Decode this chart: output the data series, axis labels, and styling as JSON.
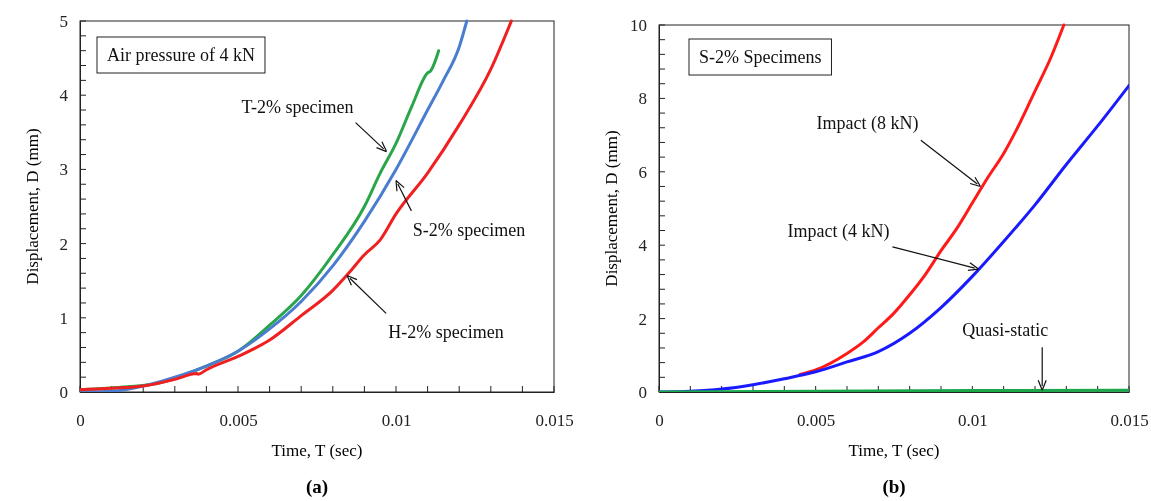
{
  "chart_data": [
    {
      "type": "line",
      "title": "Air pressure of 4 kN",
      "xlabel": "Time, T (sec)",
      "ylabel": "Displacement, D (mm)",
      "xlim": [
        0,
        0.015
      ],
      "xticks": [
        0,
        0.005,
        0.01,
        0.015
      ],
      "ylim": [
        0,
        5
      ],
      "yticks": [
        0,
        1,
        2,
        3,
        4,
        5
      ],
      "marker": "none",
      "line_style": "solid",
      "series": [
        {
          "color": "#2aa54a",
          "x": [
            0,
            0.0015,
            0.0025,
            0.004,
            0.005,
            0.006,
            0.007,
            0.008,
            0.009,
            0.0095,
            0.01,
            0.0105,
            0.011,
            0.0111,
            0.01135
          ],
          "values": [
            0.03,
            0.07,
            0.12,
            0.35,
            0.55,
            0.9,
            1.3,
            1.85,
            2.5,
            2.95,
            3.35,
            3.85,
            4.3,
            4.33,
            4.6
          ]
        },
        {
          "color": "#4a7cd0",
          "x": [
            0,
            0.001,
            0.002,
            0.003,
            0.004,
            0.005,
            0.006,
            0.007,
            0.008,
            0.009,
            0.01,
            0.011,
            0.0115,
            0.012,
            0.01224
          ],
          "values": [
            0,
            0.01,
            0.08,
            0.2,
            0.35,
            0.55,
            0.85,
            1.22,
            1.7,
            2.3,
            3.0,
            3.8,
            4.2,
            4.65,
            5.0
          ]
        },
        {
          "color": "#f02020",
          "x": [
            0,
            0.001,
            0.002,
            0.003,
            0.0037,
            0.00374,
            0.004,
            0.005,
            0.006,
            0.007,
            0.008,
            0.0085,
            0.009,
            0.0095,
            0.01,
            0.011,
            0.012,
            0.013,
            0.01365
          ],
          "values": [
            0.03,
            0.05,
            0.08,
            0.17,
            0.25,
            0.24,
            0.3,
            0.48,
            0.7,
            1.03,
            1.37,
            1.6,
            1.85,
            2.05,
            2.4,
            2.95,
            3.6,
            4.35,
            5.0
          ]
        }
      ],
      "annotations": [
        {
          "text": "T-2% specimen",
          "x": 0.0097,
          "y": 3.24
        },
        {
          "text": "S-2% specimen",
          "x": 0.01,
          "y": 2.85
        },
        {
          "text": "H-2% specimen",
          "x": 0.00845,
          "y": 1.57
        },
        "(a)"
      ]
    },
    {
      "type": "line",
      "title": "S-2% Specimens",
      "xlabel": "Time, T (sec)",
      "ylabel": "Displacement, D (mm)",
      "xlim": [
        0,
        0.015
      ],
      "xticks": [
        0,
        0.005,
        0.01,
        0.015
      ],
      "ylim": [
        0,
        10
      ],
      "yticks": [
        0,
        2,
        4,
        6,
        8,
        10
      ],
      "marker": "none",
      "line_style": "solid",
      "series": [
        {
          "color": "#ff1a1a",
          "x": [
            0.0045,
            0.005,
            0.006,
            0.0065,
            0.007,
            0.0075,
            0.008,
            0.0085,
            0.009,
            0.0095,
            0.01,
            0.0105,
            0.011,
            0.0115,
            0.012,
            0.0125,
            0.01292
          ],
          "values": [
            0.48,
            0.6,
            1.05,
            1.35,
            1.75,
            2.15,
            2.65,
            3.2,
            3.85,
            4.45,
            5.15,
            5.85,
            6.5,
            7.3,
            8.2,
            9.1,
            10.0
          ]
        },
        {
          "color": "#1a1aff",
          "x": [
            0,
            0.001,
            0.002,
            0.003,
            0.004,
            0.005,
            0.006,
            0.007,
            0.008,
            0.009,
            0.01,
            0.011,
            0.012,
            0.013,
            0.014,
            0.015
          ],
          "values": [
            0,
            0.02,
            0.08,
            0.2,
            0.36,
            0.55,
            0.82,
            1.1,
            1.6,
            2.3,
            3.15,
            4.1,
            5.1,
            6.2,
            7.25,
            8.35
          ]
        },
        {
          "color": "#1aa84a",
          "x": [
            0,
            0.005,
            0.01,
            0.015
          ],
          "values": [
            0,
            0.02,
            0.04,
            0.05
          ]
        }
      ],
      "annotations": [
        {
          "text": "Impact (8 kN)",
          "x": 0.01026,
          "y": 5.6
        },
        {
          "text": "Impact (4 kN)",
          "x": 0.0102,
          "y": 3.35
        },
        {
          "text": "Quasi-static",
          "x": 0.01223,
          "y": 0.05
        },
        "(b)"
      ]
    }
  ]
}
